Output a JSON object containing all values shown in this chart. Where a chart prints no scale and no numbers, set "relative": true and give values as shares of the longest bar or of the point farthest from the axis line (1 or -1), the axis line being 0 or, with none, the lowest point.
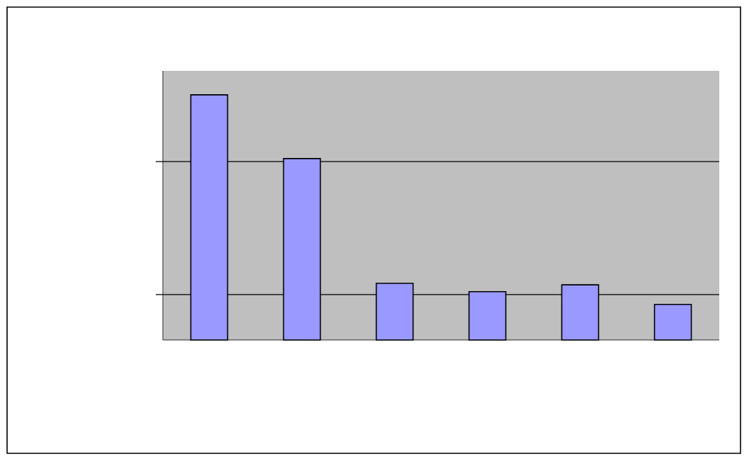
{
  "chart_data": {
    "type": "bar",
    "relative": true,
    "categories": [
      null,
      null,
      null,
      null,
      null,
      null
    ],
    "values": [
      1,
      0.74,
      0.231,
      0.197,
      0.225,
      0.145
    ],
    "color": "#9999ff",
    "ref_lines": [
      {
        "axis": "y",
        "value": 0.185,
        "color": "#000000"
      },
      {
        "axis": "y",
        "value": 0.728,
        "color": "#000000"
      }
    ]
  }
}
